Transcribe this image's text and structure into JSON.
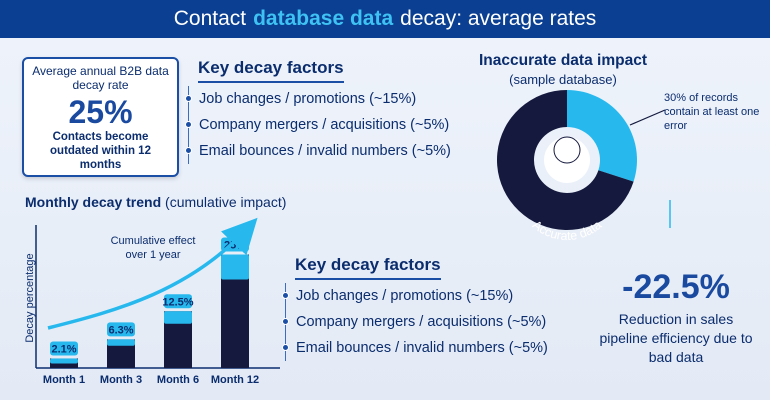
{
  "header": {
    "title_pre": "Contact",
    "title_highlight": "database data",
    "title_post": "decay: average rates"
  },
  "stat_box": {
    "label": "Average annual B2B data decay rate",
    "value": "25%",
    "sub": "Contacts become outdated within 12 months"
  },
  "key_factors_top": {
    "heading": "Key decay factors",
    "items": [
      "Job changes / promotions (~15%)",
      "Company mergers / acquisitions (~5%)",
      "Email bounces / invalid numbers (~5%)"
    ]
  },
  "key_factors_bottom": {
    "heading": "Key decay factors",
    "items": [
      "Job changes / promotions (~15%)",
      "Company mergers / acquisitions (~5%)",
      "Email bounces / invalid numbers (~5%)"
    ]
  },
  "trend": {
    "title_bold": "Monthly decay trend",
    "title_rest": "(cumulative impact)",
    "annotation": "Cumulative effect over 1 year"
  },
  "donut": {
    "title": "Inaccurate data impact",
    "subtitle": "(sample database)",
    "callout": "30% of records contain at least one error",
    "inner_label": "Accurate data"
  },
  "impact": {
    "value": "-22.5%",
    "text": "Reduction in sales pipeline efficiency due to bad data"
  },
  "colors": {
    "navy": "#15193d",
    "cyan": "#27b9ee",
    "blue": "#1a4aa0",
    "banner": "#0b3f92"
  },
  "chart_data": [
    {
      "type": "bar",
      "title": "Monthly decay trend (cumulative impact)",
      "ylabel": "Decay percentage",
      "categories": [
        "Month 1",
        "Month 3",
        "Month 6",
        "Month 12"
      ],
      "values": [
        2.1,
        6.3,
        12.5,
        25
      ],
      "data_labels": [
        "2.1%",
        "6.3%",
        "12.5%",
        "25%"
      ],
      "ylim": [
        0,
        26
      ]
    },
    {
      "type": "pie",
      "title": "Inaccurate data impact",
      "subtitle": "(sample database)",
      "slices": [
        {
          "label": "30% of records contain at least one error",
          "value": 30,
          "color": "#27b9ee"
        },
        {
          "label": "Accurate data",
          "value": 70,
          "color": "#15193d"
        }
      ]
    }
  ]
}
